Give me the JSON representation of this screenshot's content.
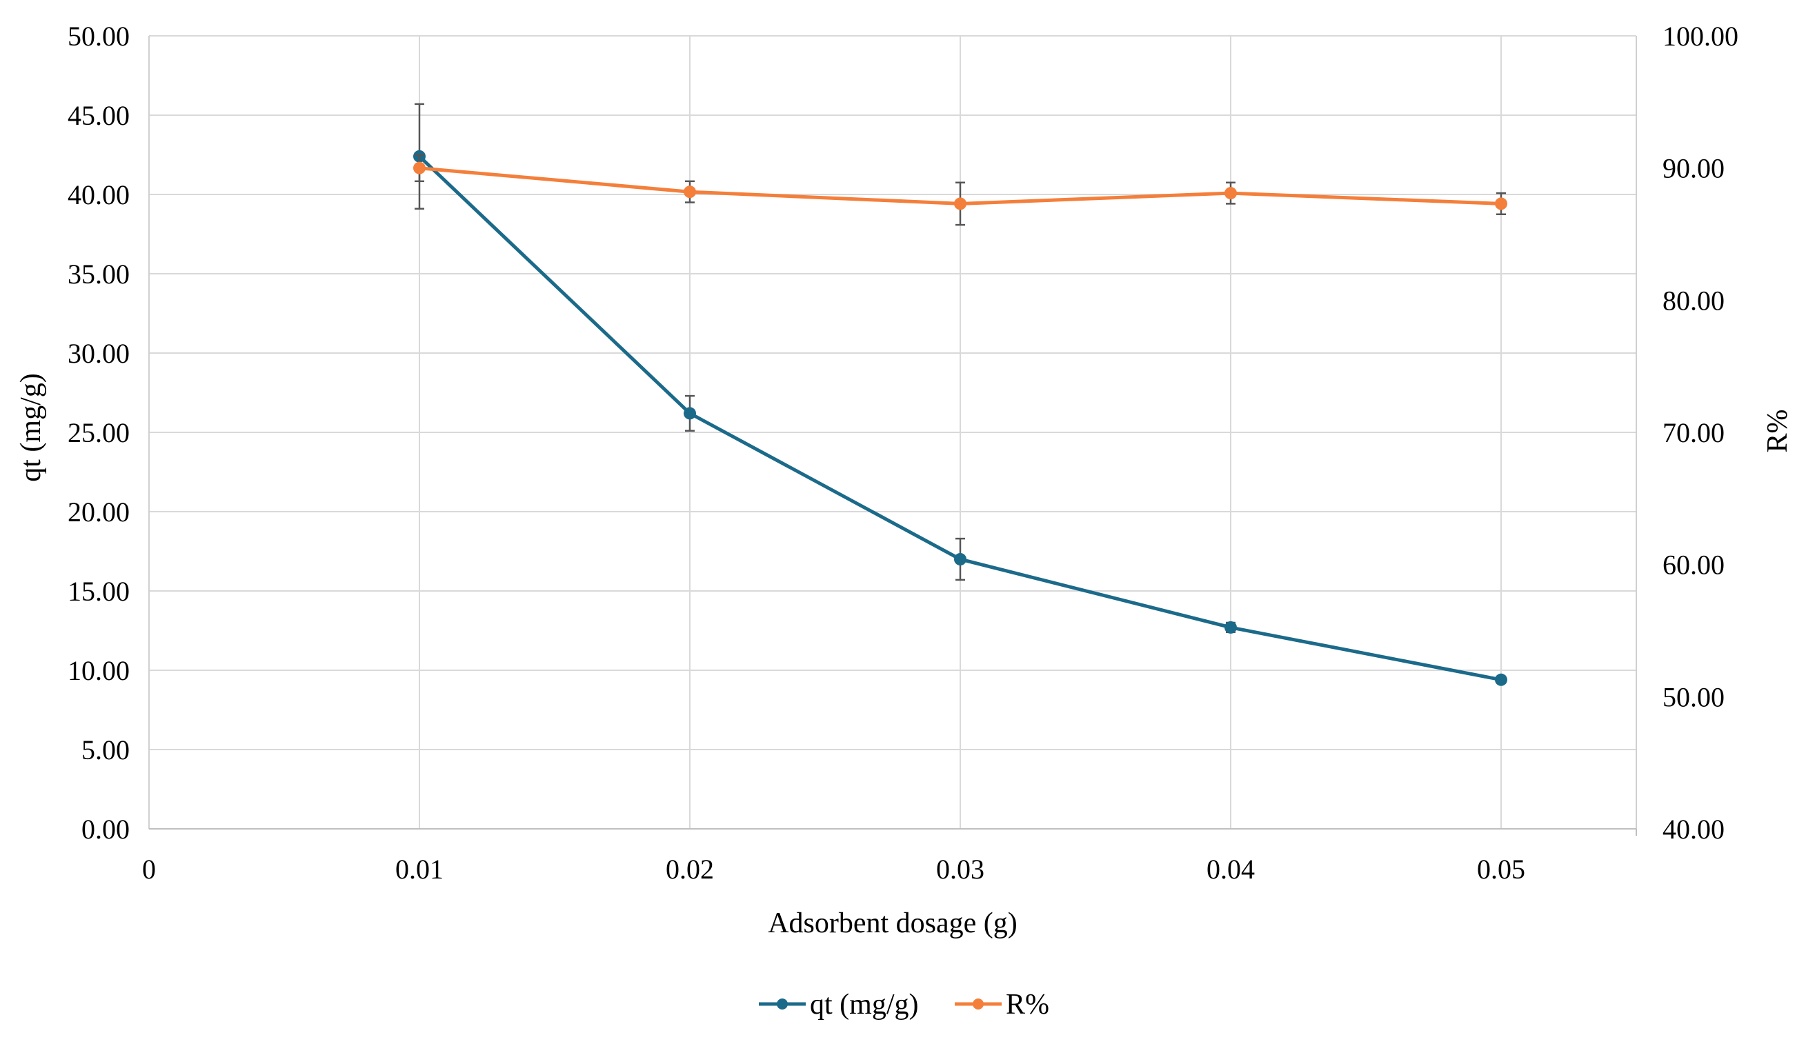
{
  "chart_data": {
    "type": "line",
    "title": "",
    "x": [
      0.01,
      0.02,
      0.03,
      0.04,
      0.05
    ],
    "xlim": [
      0,
      0.055
    ],
    "x_ticks": [
      "0",
      "0.01",
      "0.02",
      "0.03",
      "0.04",
      "0.05"
    ],
    "xlabel": "Adsorbent dosage (g)",
    "ylabel": "qt (mg/g)",
    "ylim": [
      0,
      50
    ],
    "y_ticks": [
      "0.00",
      "5.00",
      "10.00",
      "15.00",
      "20.00",
      "25.00",
      "30.00",
      "35.00",
      "40.00",
      "45.00",
      "50.00"
    ],
    "y2label": "R%",
    "y2lim": [
      40,
      100
    ],
    "y2_ticks": [
      "40.00",
      "50.00",
      "60.00",
      "70.00",
      "80.00",
      "90.00",
      "100.00"
    ],
    "grid": true,
    "legend_position": "bottom-center",
    "series": [
      {
        "name": "qt (mg/g)",
        "axis": "left",
        "color": "#1b6a8a",
        "values": [
          42.4,
          26.2,
          17.0,
          12.7,
          9.4
        ],
        "error": [
          3.3,
          1.1,
          1.3,
          0.3,
          0.2
        ]
      },
      {
        "name": "R%",
        "axis": "right",
        "color": "#f47f3b",
        "values": [
          90.0,
          88.2,
          87.3,
          88.1,
          87.3
        ],
        "error": [
          1.0,
          0.8,
          1.6,
          0.8,
          0.8
        ]
      }
    ]
  }
}
